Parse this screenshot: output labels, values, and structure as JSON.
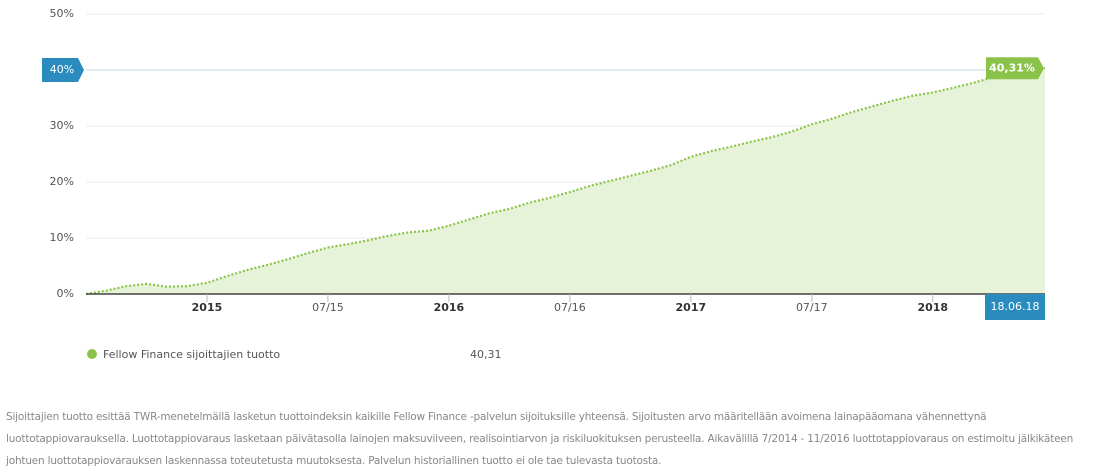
{
  "chart_data": {
    "type": "area",
    "x": [
      "2014-07",
      "2014-08",
      "2014-09",
      "2014-10",
      "2014-11",
      "2014-12",
      "2015-01",
      "2015-02",
      "2015-03",
      "2015-04",
      "2015-05",
      "2015-06",
      "2015-07",
      "2015-08",
      "2015-09",
      "2015-10",
      "2015-11",
      "2015-12",
      "2016-01",
      "2016-02",
      "2016-03",
      "2016-04",
      "2016-05",
      "2016-06",
      "2016-07",
      "2016-08",
      "2016-09",
      "2016-10",
      "2016-11",
      "2016-12",
      "2017-01",
      "2017-02",
      "2017-03",
      "2017-04",
      "2017-05",
      "2017-06",
      "2017-07",
      "2017-08",
      "2017-09",
      "2017-10",
      "2017-11",
      "2017-12",
      "2018-01",
      "2018-02",
      "2018-03",
      "2018-04",
      "2018-05",
      "2018-06-18"
    ],
    "series": [
      {
        "name": "Fellow Finance sijoittajien tuotto",
        "color": "#8bc34a",
        "values": [
          0,
          0.6,
          1.4,
          1.8,
          1.3,
          1.4,
          2.0,
          3.2,
          4.3,
          5.2,
          6.2,
          7.3,
          8.3,
          8.9,
          9.6,
          10.4,
          11.0,
          11.3,
          12.2,
          13.3,
          14.4,
          15.2,
          16.3,
          17.2,
          18.2,
          19.3,
          20.2,
          21.1,
          22.0,
          23.0,
          24.5,
          25.5,
          26.3,
          27.2,
          28.0,
          29.0,
          30.3,
          31.3,
          32.5,
          33.5,
          34.5,
          35.4,
          36.0,
          36.8,
          37.7,
          38.7,
          39.5,
          40.31
        ]
      }
    ],
    "end_value_label": "40,31%",
    "end_date_label": "18.06.18",
    "legend_value": "40,31",
    "xlim": [
      "2014-07",
      "2018-06-18"
    ],
    "xticks": [
      {
        "value": "2015-01",
        "label": "2015"
      },
      {
        "value": "2015-07",
        "label": "07/15"
      },
      {
        "value": "2016-01",
        "label": "2016"
      },
      {
        "value": "2016-07",
        "label": "07/16"
      },
      {
        "value": "2017-01",
        "label": "2017"
      },
      {
        "value": "2017-07",
        "label": "07/17"
      },
      {
        "value": "2018-01",
        "label": "2018"
      }
    ],
    "ylim": [
      0,
      50
    ],
    "yticks": [
      {
        "value": 0,
        "label": "0%"
      },
      {
        "value": 10,
        "label": "10%"
      },
      {
        "value": 20,
        "label": "20%"
      },
      {
        "value": 30,
        "label": "30%"
      },
      {
        "value": 40,
        "label": "40%"
      },
      {
        "value": 50,
        "label": "50%"
      }
    ],
    "grid": true
  },
  "footnote": "Sijoittajien tuotto esittää TWR-menetelmällä lasketun tuottoindeksin kaikille Fellow Finance -palvelun sijoituksille yhteensä. Sijoitusten arvo määritellään avoimena lainapääomana vähennettynä luottotappiovarauksella. Luottotappiovaraus lasketaan päivätasolla lainojen maksuviiveen, realisointiarvon ja riskiluokituksen perusteella. Aikavälillä 7/2014 - 11/2016 luottotappiovaraus on estimoitu jälkikäteen johtuen luottotappiovarauksen laskennassa toteutetusta muutoksesta. Palvelun historiallinen tuotto ei ole tae tulevasta tuotosta."
}
